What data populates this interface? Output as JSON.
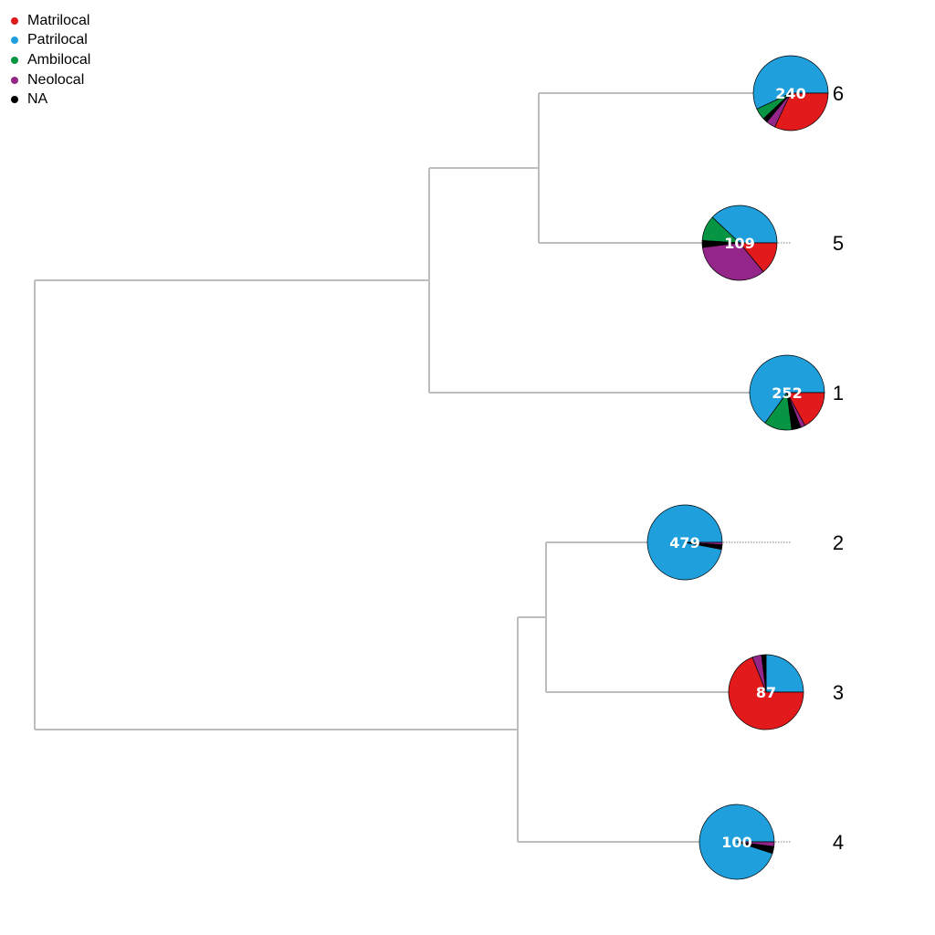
{
  "legend": [
    {
      "label": "Matrilocal",
      "color": "#e31a1c"
    },
    {
      "label": "Patrilocal",
      "color": "#1f9fdb"
    },
    {
      "label": "Ambilocal",
      "color": "#079544"
    },
    {
      "label": "Neolocal",
      "color": "#942689"
    },
    {
      "label": "NA",
      "color": "#000000"
    }
  ],
  "leaves": [
    {
      "label": "6",
      "count": "240",
      "fractions": {
        "Matrilocal": 0.32,
        "Patrilocal": 0.57,
        "Ambilocal": 0.05,
        "Neolocal": 0.04,
        "NA": 0.02
      }
    },
    {
      "label": "5",
      "count": "109",
      "fractions": {
        "Matrilocal": 0.14,
        "Patrilocal": 0.38,
        "Ambilocal": 0.11,
        "Neolocal": 0.34,
        "NA": 0.03
      }
    },
    {
      "label": "1",
      "count": "252",
      "fractions": {
        "Matrilocal": 0.17,
        "Patrilocal": 0.65,
        "Ambilocal": 0.12,
        "Neolocal": 0.02,
        "NA": 0.04
      }
    },
    {
      "label": "2",
      "count": "479",
      "fractions": {
        "Matrilocal": 0.0,
        "Patrilocal": 0.97,
        "Ambilocal": 0.0,
        "Neolocal": 0.01,
        "NA": 0.02
      }
    },
    {
      "label": "3",
      "count": "87",
      "fractions": {
        "Matrilocal": 0.69,
        "Patrilocal": 0.25,
        "Ambilocal": 0.0,
        "Neolocal": 0.04,
        "NA": 0.02
      }
    },
    {
      "label": "4",
      "count": "100",
      "fractions": {
        "Matrilocal": 0.0,
        "Patrilocal": 0.95,
        "Ambilocal": 0.0,
        "Neolocal": 0.02,
        "NA": 0.03
      }
    }
  ]
}
